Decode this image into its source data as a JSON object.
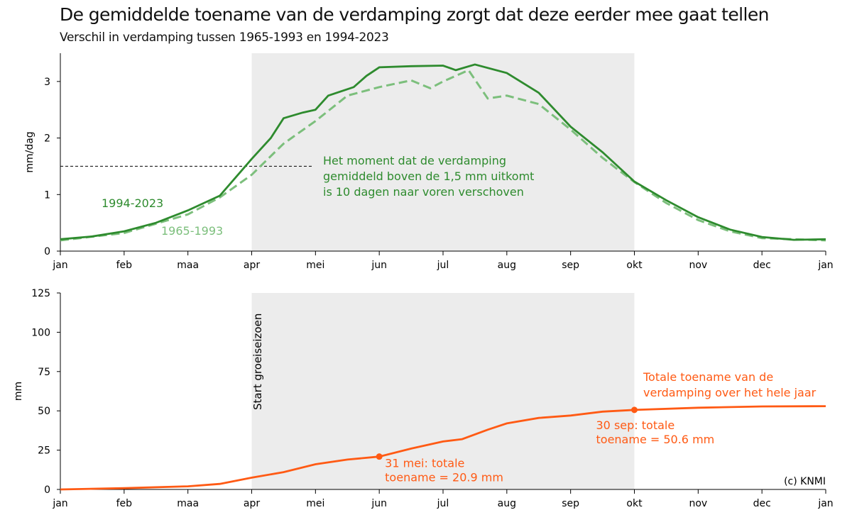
{
  "title": "De gemiddelde toename van de verdamping zorgt dat deze eerder mee gaat tellen",
  "subtitle": "Verschil in verdamping tussen 1965-1993 en 1994-2023",
  "colors": {
    "solid": "#2e8b2e",
    "dashed": "#7cbf7c",
    "orange": "#ff5a14",
    "shade": "#ececec"
  },
  "chart_data": [
    {
      "type": "line",
      "ylabel": "mm/dag",
      "ylim": [
        0,
        3.5
      ],
      "yticks": [
        "0",
        "1",
        "2",
        "3"
      ],
      "xticks": [
        "jan",
        "feb",
        "maa",
        "apr",
        "mei",
        "jun",
        "jul",
        "aug",
        "sep",
        "okt",
        "nov",
        "dec",
        "jan"
      ],
      "shaded_range_months": [
        3,
        9
      ],
      "threshold": 1.5,
      "annotation": [
        "Het moment dat de verdamping",
        "gemiddeld boven de 1,5 mm uitkomt",
        "is 10 dagen naar voren verschoven"
      ],
      "series": [
        {
          "name": "1994-2023",
          "style": "solid",
          "x": [
            0,
            0.5,
            1,
            1.5,
            2,
            2.5,
            3,
            3.3,
            3.5,
            3.8,
            4,
            4.2,
            4.6,
            4.8,
            5,
            5.5,
            6,
            6.2,
            6.5,
            7,
            7.5,
            8,
            8.5,
            9,
            9.5,
            10,
            10.5,
            11,
            11.5,
            12
          ],
          "y": [
            0.21,
            0.26,
            0.35,
            0.5,
            0.72,
            0.98,
            1.63,
            2.0,
            2.35,
            2.45,
            2.5,
            2.75,
            2.9,
            3.1,
            3.25,
            3.27,
            3.28,
            3.2,
            3.3,
            3.15,
            2.8,
            2.2,
            1.75,
            1.23,
            0.9,
            0.6,
            0.38,
            0.25,
            0.2,
            0.21
          ]
        },
        {
          "name": "1965-1993",
          "style": "dashed",
          "x": [
            0,
            1,
            2,
            2.5,
            3,
            3.5,
            4,
            4.5,
            5,
            5.5,
            5.8,
            6,
            6.4,
            6.7,
            7,
            7.5,
            8,
            8.5,
            9,
            9.5,
            10,
            10.5,
            11,
            12
          ],
          "y": [
            0.19,
            0.32,
            0.65,
            0.95,
            1.35,
            1.9,
            2.3,
            2.75,
            2.9,
            3.02,
            2.88,
            3.0,
            3.2,
            2.7,
            2.75,
            2.6,
            2.15,
            1.65,
            1.22,
            0.85,
            0.55,
            0.35,
            0.23,
            0.19
          ]
        }
      ]
    },
    {
      "type": "line",
      "ylabel": "mm",
      "ylim": [
        0,
        125
      ],
      "yticks": [
        "0",
        "25",
        "50",
        "75",
        "100",
        "125"
      ],
      "xticks": [
        "jan",
        "feb",
        "maa",
        "apr",
        "mei",
        "jun",
        "jul",
        "aug",
        "sep",
        "okt",
        "nov",
        "dec",
        "jan"
      ],
      "vertical_label": "Start groeiseizoen",
      "series": [
        {
          "name": "toename",
          "x": [
            0,
            1,
            2,
            2.5,
            3,
            3.5,
            4,
            4.5,
            5,
            5.5,
            6,
            6.3,
            6.7,
            7,
            7.5,
            8,
            8.5,
            9,
            10,
            11,
            12
          ],
          "y": [
            0,
            0.8,
            2,
            3.5,
            7.5,
            11,
            16,
            19,
            20.9,
            26,
            30.5,
            32,
            38,
            42,
            45.5,
            47,
            49.5,
            50.6,
            52,
            52.8,
            53
          ]
        }
      ],
      "points": [
        {
          "x": 5,
          "y": 20.9,
          "label": [
            "31 mei: totale",
            "toename = 20.9 mm"
          ]
        },
        {
          "x": 9,
          "y": 50.6,
          "label": [
            "30 sep: totale",
            "toename = 50.6 mm"
          ]
        }
      ],
      "annotation": [
        "Totale toename van de",
        "verdamping over het hele jaar"
      ],
      "credit": "(c) KNMI"
    }
  ]
}
